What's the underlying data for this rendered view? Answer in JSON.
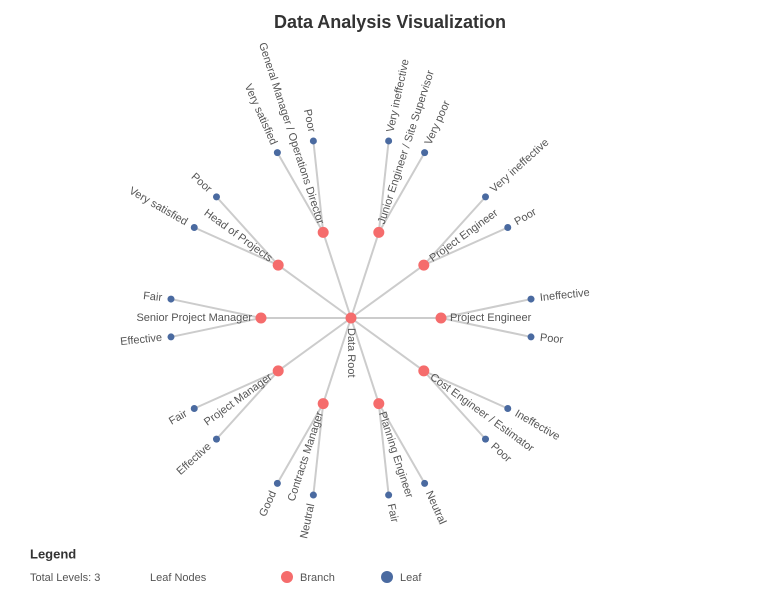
{
  "title": "Data Analysis Visualization",
  "root": {
    "label": "Data Root"
  },
  "branches": [
    {
      "label": "Project Engineer",
      "leaves": [
        "Ineffective",
        "Poor"
      ]
    },
    {
      "label": "Cost Engineer / Estimator",
      "leaves": [
        "Ineffective",
        "Poor"
      ]
    },
    {
      "label": "Planning Engineer",
      "leaves": [
        "Neutral",
        "Fair"
      ]
    },
    {
      "label": "Contracts Manager",
      "leaves": [
        "Neutral",
        "Good"
      ]
    },
    {
      "label": "Project Manager",
      "leaves": [
        "Effective",
        "Fair"
      ]
    },
    {
      "label": "Senior Project Manager",
      "leaves": [
        "Effective",
        "Fair"
      ]
    },
    {
      "label": "Head of Projects",
      "leaves": [
        "Very satisfied",
        "Poor"
      ]
    },
    {
      "label": "General Manager / Operations Director",
      "leaves": [
        "Very satisfied",
        "Poor"
      ]
    },
    {
      "label": "Junior Engineer / Site Supervisor",
      "leaves": [
        "Very ineffective",
        "Very poor"
      ]
    },
    {
      "label": "Project Engineer",
      "leaves": [
        "Very ineffective",
        "Poor"
      ]
    }
  ],
  "legend": {
    "title": "Legend",
    "levels": "Total Levels: 3",
    "leaf_nodes": "Leaf Nodes",
    "branch": "Branch",
    "leaf": "Leaf"
  }
}
